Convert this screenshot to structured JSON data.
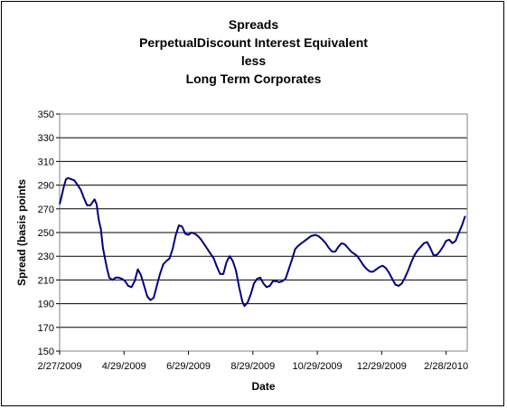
{
  "chart_data": {
    "type": "line",
    "title_lines": [
      "Spreads",
      "PerpetualDiscount Interest Equivalent",
      "less",
      "Long Term Corporates"
    ],
    "xlabel": "Date",
    "ylabel": "Spread (basis points",
    "ylim": [
      150,
      350
    ],
    "y_ticks": [
      150,
      170,
      190,
      210,
      230,
      250,
      270,
      290,
      310,
      330,
      350
    ],
    "x_range": [
      "2009-02-27",
      "2010-03-20"
    ],
    "x_ticks": [
      {
        "date": "2009-02-27",
        "label": "2/27/2009"
      },
      {
        "date": "2009-04-29",
        "label": "4/29/2009"
      },
      {
        "date": "2009-06-29",
        "label": "6/29/2009"
      },
      {
        "date": "2009-08-29",
        "label": "8/29/2009"
      },
      {
        "date": "2009-10-29",
        "label": "10/29/2009"
      },
      {
        "date": "2009-12-29",
        "label": "12/29/2009"
      },
      {
        "date": "2010-02-28",
        "label": "2/28/2010"
      }
    ],
    "grid": true,
    "legend": "none",
    "line_color": "#000080",
    "series": [
      {
        "points": [
          [
            "2009-02-27",
            274
          ],
          [
            "2009-03-01",
            281
          ],
          [
            "2009-03-03",
            289
          ],
          [
            "2009-03-05",
            295
          ],
          [
            "2009-03-07",
            296
          ],
          [
            "2009-03-10",
            295
          ],
          [
            "2009-03-13",
            294
          ],
          [
            "2009-03-16",
            290
          ],
          [
            "2009-03-19",
            286
          ],
          [
            "2009-03-22",
            279
          ],
          [
            "2009-03-25",
            273
          ],
          [
            "2009-03-28",
            273
          ],
          [
            "2009-04-01",
            278
          ],
          [
            "2009-04-03",
            274
          ],
          [
            "2009-04-05",
            261
          ],
          [
            "2009-04-07",
            253
          ],
          [
            "2009-04-09",
            237
          ],
          [
            "2009-04-11",
            228
          ],
          [
            "2009-04-13",
            219
          ],
          [
            "2009-04-15",
            212
          ],
          [
            "2009-04-18",
            210
          ],
          [
            "2009-04-21",
            212
          ],
          [
            "2009-04-24",
            212
          ],
          [
            "2009-04-27",
            211
          ],
          [
            "2009-04-30",
            209
          ],
          [
            "2009-05-03",
            205
          ],
          [
            "2009-05-06",
            204
          ],
          [
            "2009-05-09",
            209
          ],
          [
            "2009-05-12",
            219
          ],
          [
            "2009-05-15",
            214
          ],
          [
            "2009-05-18",
            205
          ],
          [
            "2009-05-21",
            196
          ],
          [
            "2009-05-24",
            193
          ],
          [
            "2009-05-27",
            195
          ],
          [
            "2009-05-30",
            205
          ],
          [
            "2009-06-02",
            215
          ],
          [
            "2009-06-05",
            223
          ],
          [
            "2009-06-08",
            226
          ],
          [
            "2009-06-11",
            228
          ],
          [
            "2009-06-14",
            236
          ],
          [
            "2009-06-17",
            248
          ],
          [
            "2009-06-20",
            256
          ],
          [
            "2009-06-23",
            255
          ],
          [
            "2009-06-26",
            249
          ],
          [
            "2009-06-29",
            248
          ],
          [
            "2009-07-02",
            250
          ],
          [
            "2009-07-05",
            249
          ],
          [
            "2009-07-08",
            247
          ],
          [
            "2009-07-11",
            244
          ],
          [
            "2009-07-14",
            240
          ],
          [
            "2009-07-17",
            236
          ],
          [
            "2009-07-20",
            232
          ],
          [
            "2009-07-23",
            228
          ],
          [
            "2009-07-26",
            221
          ],
          [
            "2009-07-29",
            215
          ],
          [
            "2009-08-01",
            215
          ],
          [
            "2009-08-04",
            225
          ],
          [
            "2009-08-07",
            230
          ],
          [
            "2009-08-10",
            226
          ],
          [
            "2009-08-13",
            218
          ],
          [
            "2009-08-16",
            204
          ],
          [
            "2009-08-19",
            192
          ],
          [
            "2009-08-21",
            188
          ],
          [
            "2009-08-24",
            191
          ],
          [
            "2009-08-27",
            198
          ],
          [
            "2009-08-30",
            207
          ],
          [
            "2009-09-02",
            211
          ],
          [
            "2009-09-05",
            212
          ],
          [
            "2009-09-08",
            207
          ],
          [
            "2009-09-11",
            204
          ],
          [
            "2009-09-14",
            205
          ],
          [
            "2009-09-17",
            209
          ],
          [
            "2009-09-20",
            209
          ],
          [
            "2009-09-23",
            208
          ],
          [
            "2009-09-26",
            209
          ],
          [
            "2009-09-29",
            211
          ],
          [
            "2009-10-02",
            219
          ],
          [
            "2009-10-05",
            227
          ],
          [
            "2009-10-08",
            236
          ],
          [
            "2009-10-11",
            239
          ],
          [
            "2009-10-14",
            241
          ],
          [
            "2009-10-17",
            243
          ],
          [
            "2009-10-20",
            245
          ],
          [
            "2009-10-23",
            247
          ],
          [
            "2009-10-27",
            248
          ],
          [
            "2009-10-30",
            247
          ],
          [
            "2009-11-03",
            244
          ],
          [
            "2009-11-06",
            241
          ],
          [
            "2009-11-09",
            237
          ],
          [
            "2009-11-12",
            234
          ],
          [
            "2009-11-15",
            234
          ],
          [
            "2009-11-18",
            238
          ],
          [
            "2009-11-21",
            241
          ],
          [
            "2009-11-24",
            240
          ],
          [
            "2009-11-27",
            237
          ],
          [
            "2009-11-30",
            234
          ],
          [
            "2009-12-03",
            232
          ],
          [
            "2009-12-06",
            230
          ],
          [
            "2009-12-09",
            226
          ],
          [
            "2009-12-12",
            222
          ],
          [
            "2009-12-15",
            219
          ],
          [
            "2009-12-18",
            217
          ],
          [
            "2009-12-21",
            217
          ],
          [
            "2009-12-24",
            219
          ],
          [
            "2009-12-27",
            221
          ],
          [
            "2009-12-30",
            222
          ],
          [
            "2010-01-02",
            220
          ],
          [
            "2010-01-05",
            216
          ],
          [
            "2010-01-08",
            211
          ],
          [
            "2010-01-11",
            206
          ],
          [
            "2010-01-14",
            205
          ],
          [
            "2010-01-17",
            207
          ],
          [
            "2010-01-20",
            212
          ],
          [
            "2010-01-23",
            218
          ],
          [
            "2010-01-26",
            225
          ],
          [
            "2010-01-29",
            231
          ],
          [
            "2010-02-01",
            235
          ],
          [
            "2010-02-04",
            238
          ],
          [
            "2010-02-07",
            241
          ],
          [
            "2010-02-10",
            242
          ],
          [
            "2010-02-13",
            237
          ],
          [
            "2010-02-16",
            231
          ],
          [
            "2010-02-19",
            231
          ],
          [
            "2010-02-22",
            234
          ],
          [
            "2010-02-25",
            238
          ],
          [
            "2010-02-28",
            243
          ],
          [
            "2010-03-03",
            244
          ],
          [
            "2010-03-06",
            241
          ],
          [
            "2010-03-09",
            243
          ],
          [
            "2010-03-12",
            250
          ],
          [
            "2010-03-15",
            256
          ],
          [
            "2010-03-18",
            264
          ]
        ]
      }
    ]
  }
}
